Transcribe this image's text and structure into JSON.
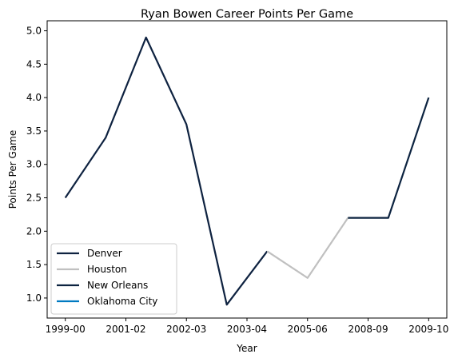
{
  "chart_data": {
    "type": "line",
    "title": "Ryan Bowen Career Points Per Game",
    "xlabel": "Year",
    "ylabel": "Points Per Game",
    "x_tick_labels": [
      "1999-00",
      "2001-02",
      "2002-03",
      "2003-04",
      "2005-06",
      "2008-09",
      "2009-10"
    ],
    "ylim": [
      0.7,
      5.15
    ],
    "y_ticks": [
      "1.0",
      "1.5",
      "2.0",
      "2.5",
      "3.0",
      "3.5",
      "4.0",
      "4.5",
      "5.0"
    ],
    "grid": false,
    "legend_position": "lower-left",
    "series": [
      {
        "name": "Denver",
        "color": "#0e2240",
        "x": [
          0,
          1,
          2,
          3,
          4,
          5
        ],
        "values": [
          2.5,
          3.4,
          4.9,
          3.6,
          0.9,
          1.7
        ]
      },
      {
        "name": "Houston",
        "color": "#c0c0c0",
        "x": [
          5,
          6,
          7
        ],
        "values": [
          1.7,
          1.3,
          2.2
        ]
      },
      {
        "name": "New Orleans",
        "color": "#0c2340",
        "x": [
          7,
          8,
          9
        ],
        "values": [
          2.2,
          2.2,
          4.0
        ]
      },
      {
        "name": "Oklahoma City",
        "color": "#007ac1",
        "x": [],
        "values": []
      }
    ]
  }
}
